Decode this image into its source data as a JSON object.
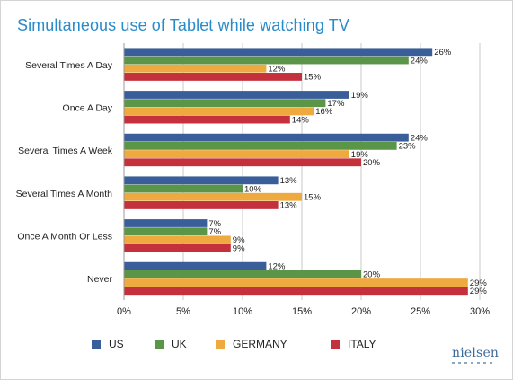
{
  "title": "Simultaneous use of Tablet while watching TV",
  "brand": "nielsen",
  "chart_data": {
    "type": "bar",
    "orientation": "horizontal",
    "title": "Simultaneous use of Tablet while watching TV",
    "categories": [
      "Several Times A Day",
      "Once A Day",
      "Several Times A Week",
      "Several Times A Month",
      "Once A Month Or Less",
      "Never"
    ],
    "series": [
      {
        "name": "US",
        "color": "#3a5e99",
        "values": [
          26,
          19,
          24,
          13,
          7,
          12
        ]
      },
      {
        "name": "UK",
        "color": "#5b9548",
        "values": [
          24,
          17,
          23,
          10,
          7,
          20
        ]
      },
      {
        "name": "GERMANY",
        "color": "#eea93f",
        "values": [
          12,
          16,
          19,
          15,
          9,
          29
        ]
      },
      {
        "name": "ITALY",
        "color": "#c4303b",
        "values": [
          15,
          14,
          20,
          13,
          9,
          29
        ]
      }
    ],
    "value_suffix": "%",
    "xlim": [
      0,
      30
    ],
    "xticks": [
      "0%",
      "5%",
      "10%",
      "15%",
      "20%",
      "25%",
      "30%"
    ],
    "grid": true,
    "legend_position": "bottom"
  }
}
